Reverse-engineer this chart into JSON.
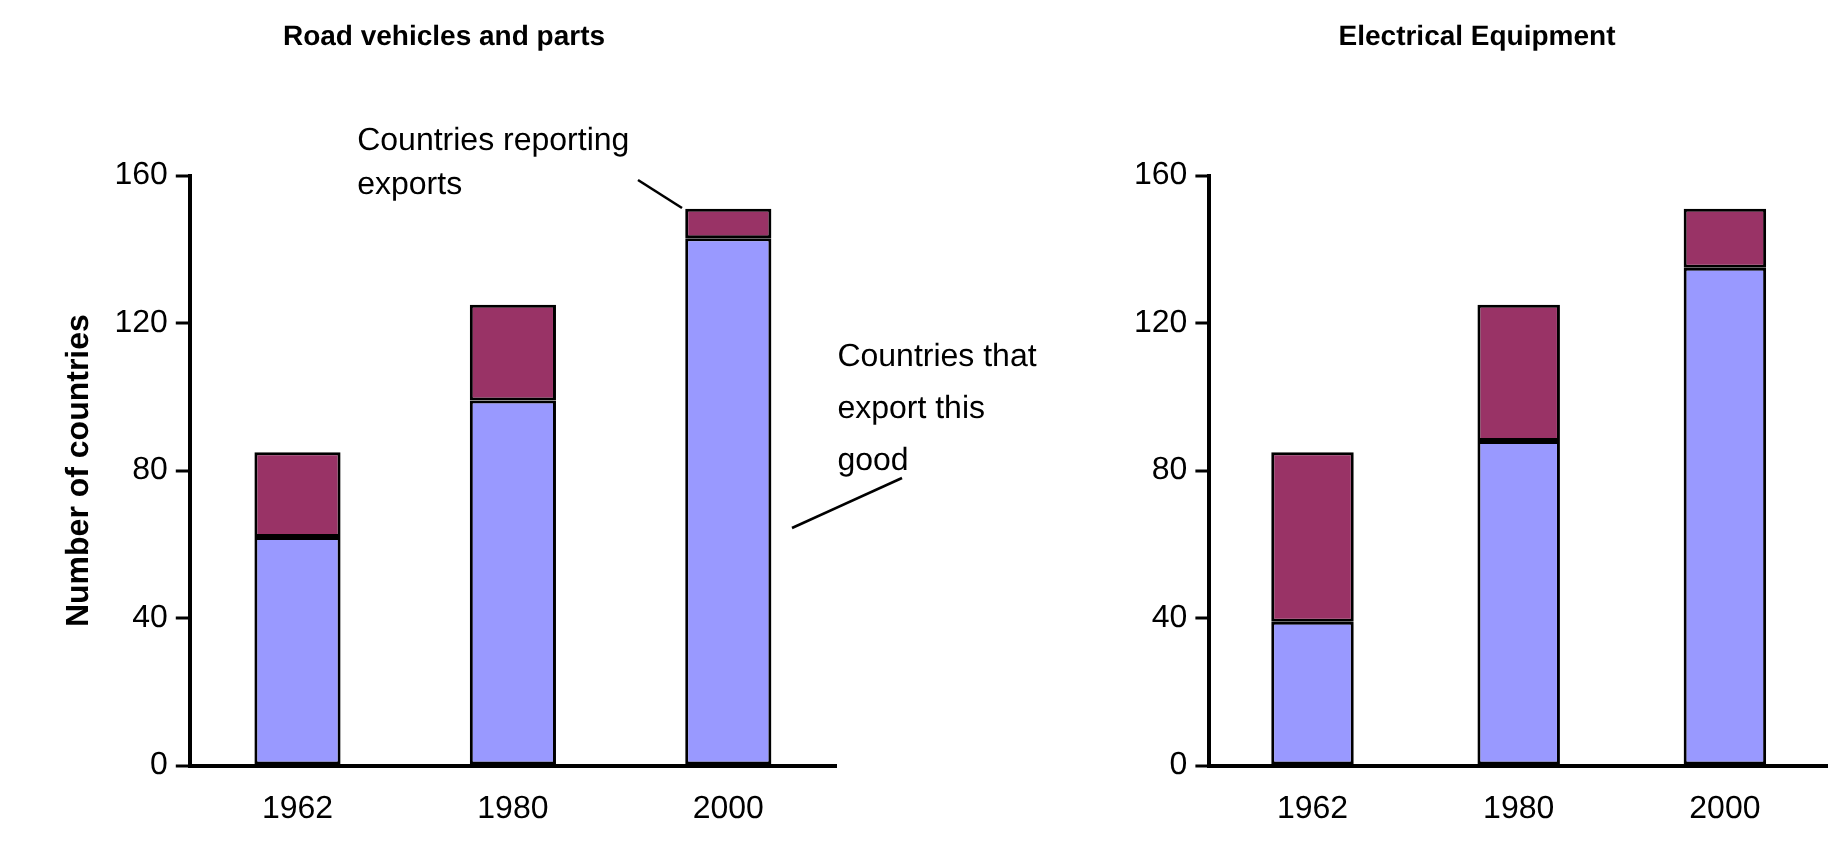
{
  "chart_data": [
    {
      "type": "bar",
      "title": "Road vehicles and parts",
      "ylabel": "Number of countries",
      "categories": [
        "1962",
        "1980",
        "2000"
      ],
      "stacked": true,
      "ylim": [
        0,
        160
      ],
      "yticks": [
        0,
        40,
        80,
        120,
        160
      ],
      "grid": false,
      "legend": false,
      "series": [
        {
          "name": "Countries that export this good",
          "color": "#9999ff",
          "values": [
            62,
            99,
            143
          ]
        },
        {
          "name": "Countries reporting exports",
          "color": "#993366",
          "values": [
            23,
            26,
            8
          ]
        }
      ]
    },
    {
      "type": "bar",
      "title": "Electrical Equipment",
      "categories": [
        "1962",
        "1980",
        "2000"
      ],
      "stacked": true,
      "ylim": [
        0,
        160
      ],
      "yticks": [
        0,
        40,
        80,
        120,
        160
      ],
      "grid": false,
      "legend": false,
      "series": [
        {
          "color": "#9999ff",
          "values": [
            39,
            88,
            135
          ]
        },
        {
          "color": "#993366",
          "values": [
            46,
            37,
            16
          ]
        }
      ]
    }
  ]
}
